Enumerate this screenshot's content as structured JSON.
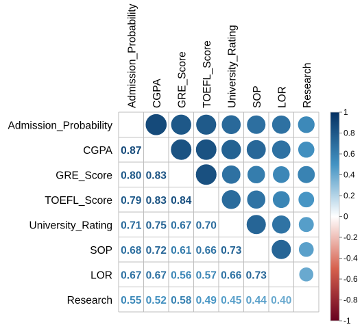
{
  "chart_data": {
    "type": "heatmap",
    "variables": [
      "Admission_Probability",
      "CGPA",
      "GRE_Score",
      "TOEFL_Score",
      "University_Rating",
      "SOP",
      "LOR",
      "Research"
    ],
    "matrix": [
      [
        1.0,
        0.87,
        0.8,
        0.79,
        0.71,
        0.68,
        0.67,
        0.55
      ],
      [
        0.87,
        1.0,
        0.83,
        0.83,
        0.75,
        0.72,
        0.67,
        0.52
      ],
      [
        0.8,
        0.83,
        1.0,
        0.84,
        0.67,
        0.61,
        0.56,
        0.58
      ],
      [
        0.79,
        0.83,
        0.84,
        1.0,
        0.7,
        0.66,
        0.57,
        0.49
      ],
      [
        0.71,
        0.75,
        0.67,
        0.7,
        1.0,
        0.73,
        0.66,
        0.45
      ],
      [
        0.68,
        0.72,
        0.61,
        0.66,
        0.73,
        1.0,
        0.73,
        0.44
      ],
      [
        0.67,
        0.67,
        0.56,
        0.57,
        0.66,
        0.73,
        1.0,
        0.4
      ],
      [
        0.55,
        0.52,
        0.58,
        0.49,
        0.45,
        0.44,
        0.4,
        1.0
      ]
    ],
    "upper_triangle": "circles",
    "lower_triangle": "numbers",
    "diagonal": "blank",
    "colorbar": {
      "range": [
        -1,
        1
      ],
      "ticks": [
        "1",
        "0.8",
        "0.6",
        "0.4",
        "0.2",
        "0",
        "-0.2",
        "-0.4",
        "-0.6",
        "-0.8",
        "-1"
      ],
      "tick_values": [
        1,
        0.8,
        0.6,
        0.4,
        0.2,
        0,
        -0.2,
        -0.4,
        -0.6,
        -0.8,
        -1
      ],
      "color_stops": [
        {
          "value": -1,
          "color": "#67001F"
        },
        {
          "value": -0.5,
          "color": "#D6604D"
        },
        {
          "value": 0,
          "color": "#FFFFFF"
        },
        {
          "value": 0.5,
          "color": "#4393C3"
        },
        {
          "value": 1,
          "color": "#053061"
        }
      ]
    },
    "grid": true,
    "colors": {
      "grid": "#BEBEBE",
      "label": "#000000"
    }
  }
}
